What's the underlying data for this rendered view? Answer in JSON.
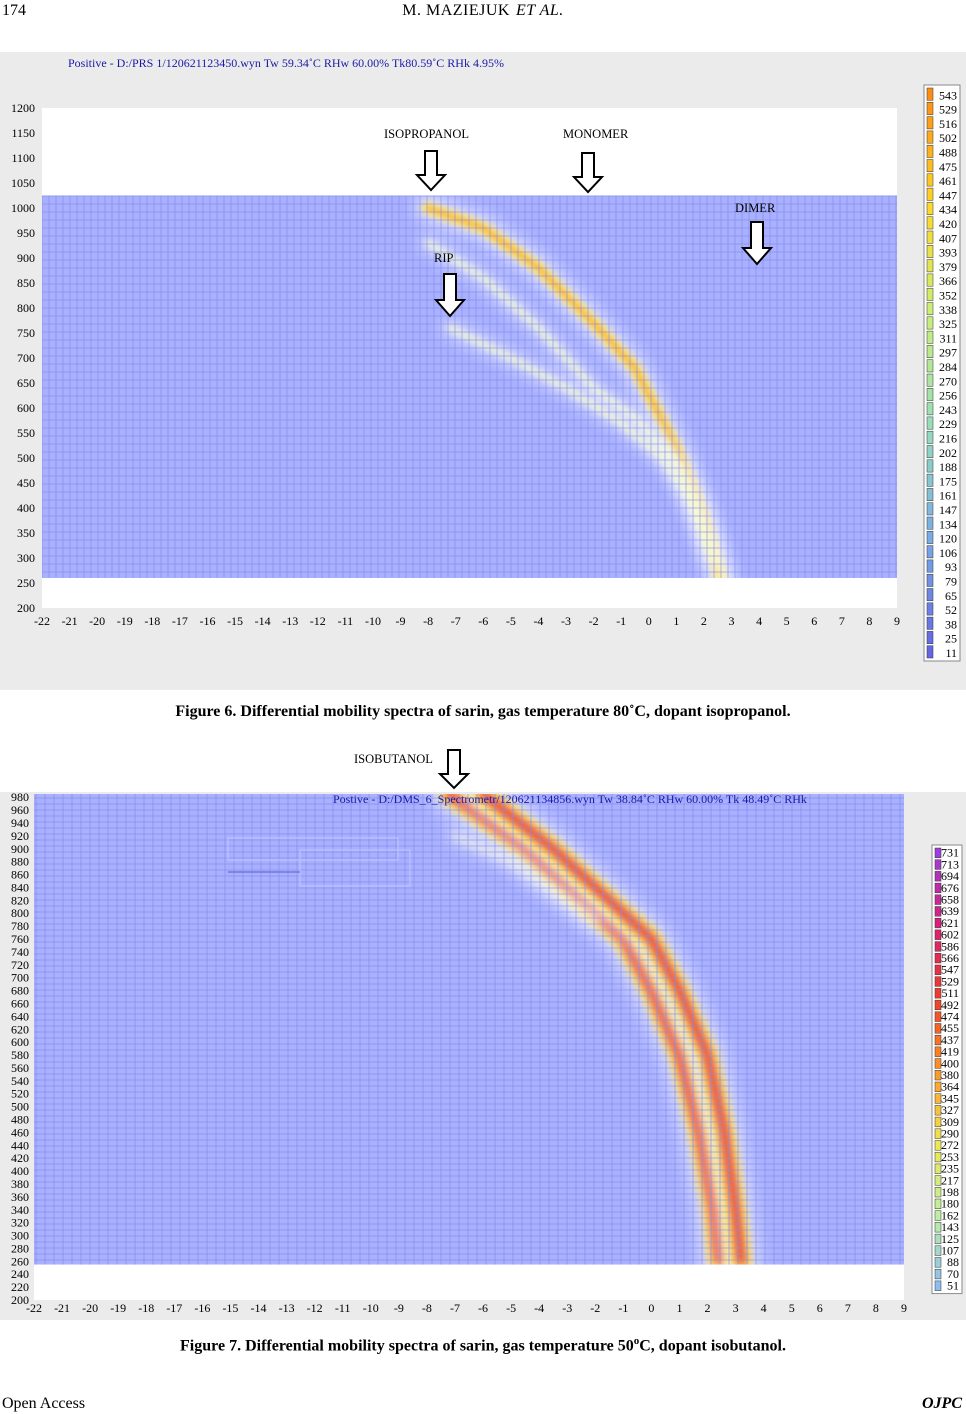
{
  "running_head": {
    "page_number": "174",
    "authors": "M. MAZIEJUK",
    "et_al": "ET AL."
  },
  "figure6": {
    "caption": "Figure 6. Differential mobility spectra of sarin, gas temperature 80˚C, dopant isopropanol.",
    "file_header": "Positive - D:/PRS 1/120621123450.wyn Tw 59.34˚C RHw 60.00% Tk80.59˚C RHk 4.95%",
    "annotations": [
      "ISOPROPANOL",
      "MONOMER",
      "RIP",
      "DIMER"
    ],
    "colors": {
      "background": "#a8b0ff",
      "grid": "#7a84e8",
      "peak": "#ffd23a",
      "panel": "#ebebeb"
    },
    "chart_data": {
      "type": "heatmap",
      "x_ticks": [
        "-22",
        "-21",
        "-20",
        "-19",
        "-18",
        "-17",
        "-16",
        "-15",
        "-14",
        "-13",
        "-12",
        "-11",
        "-10",
        "-9",
        "-8",
        "-7",
        "-6",
        "-5",
        "-4",
        "-3",
        "-2",
        "-1",
        "0",
        "1",
        "2",
        "3",
        "4",
        "5",
        "6",
        "7",
        "8",
        "9"
      ],
      "y_ticks": [
        "200",
        "250",
        "300",
        "350",
        "400",
        "450",
        "500",
        "550",
        "600",
        "650",
        "700",
        "750",
        "800",
        "850",
        "900",
        "950",
        "1000",
        "1050",
        "1100",
        "1150",
        "1200"
      ],
      "xlim": [
        -22,
        9
      ],
      "ylim": [
        200,
        1200
      ],
      "data_y_range": [
        260,
        1025
      ],
      "legend": [
        "543",
        "529",
        "516",
        "502",
        "488",
        "475",
        "461",
        "447",
        "434",
        "420",
        "407",
        "393",
        "379",
        "366",
        "352",
        "338",
        "325",
        "311",
        "297",
        "284",
        "270",
        "256",
        "243",
        "229",
        "216",
        "202",
        "188",
        "175",
        "161",
        "147",
        "134",
        "120",
        "106",
        "93",
        "79",
        "65",
        "52",
        "38",
        "25",
        "11"
      ],
      "ridges": [
        {
          "x": [
            -8,
            -6,
            -4,
            -2,
            -0.5,
            1,
            2,
            2.6
          ],
          "y": [
            1000,
            960,
            880,
            770,
            680,
            520,
            380,
            260
          ]
        },
        {
          "x": [
            -8,
            -6,
            -4,
            -2,
            -0.5,
            1.2,
            2.1,
            2.7
          ],
          "y": [
            930,
            860,
            760,
            640,
            580,
            480,
            360,
            260
          ]
        },
        {
          "x": [
            -7.2,
            -5,
            -3,
            -1,
            0.5,
            1.5,
            2.3
          ],
          "y": [
            760,
            700,
            640,
            570,
            500,
            420,
            300
          ]
        }
      ]
    }
  },
  "figure7": {
    "caption_prefix": "Figure 7. Differential mobility spectra of sarin, gas temperature 50",
    "caption_degree": "o",
    "caption_suffix": "C, dopant isobutanol.",
    "file_header": "Postive - D:/DMS_6_Spectrometr/120621134856.wyn Tw 38.84˚C RHw 60.00% Tk 48.49˚C RHk",
    "annotations": [
      "ISOBUTANOL"
    ],
    "colors": {
      "background": "#a8b0ff",
      "grid": "#7a84e8",
      "peak_core": "#e0205a",
      "peak_mid": "#ff9a2a",
      "peak_outer": "#ffe860"
    },
    "chart_data": {
      "type": "heatmap",
      "x_ticks": [
        "-22",
        "-21",
        "-20",
        "-19",
        "-18",
        "-17",
        "-16",
        "-15",
        "-14",
        "-13",
        "-12",
        "-11",
        "-10",
        "-9",
        "-8",
        "-7",
        "-6",
        "-5",
        "-4",
        "-3",
        "-2",
        "-1",
        "0",
        "1",
        "2",
        "3",
        "4",
        "5",
        "6",
        "7",
        "8",
        "9"
      ],
      "y_ticks": [
        "200",
        "220",
        "240",
        "260",
        "280",
        "300",
        "320",
        "340",
        "360",
        "380",
        "400",
        "420",
        "440",
        "460",
        "480",
        "500",
        "520",
        "540",
        "560",
        "580",
        "600",
        "620",
        "640",
        "660",
        "680",
        "700",
        "720",
        "740",
        "760",
        "780",
        "800",
        "820",
        "840",
        "860",
        "880",
        "900",
        "920",
        "940",
        "960",
        "980"
      ],
      "xlim": [
        -22,
        9
      ],
      "ylim": [
        200,
        985
      ],
      "data_y_range": [
        255,
        985
      ],
      "legend": [
        "731",
        "713",
        "694",
        "676",
        "658",
        "639",
        "621",
        "602",
        "586",
        "566",
        "547",
        "529",
        "511",
        "492",
        "474",
        "455",
        "437",
        "419",
        "400",
        "380",
        "364",
        "345",
        "327",
        "309",
        "290",
        "272",
        "253",
        "235",
        "217",
        "198",
        "180",
        "162",
        "143",
        "125",
        "107",
        "88",
        "70",
        "51"
      ],
      "ridges": [
        {
          "x": [
            -7.2,
            -4.5,
            -2.5,
            -1,
            0,
            1,
            1.7,
            2.2,
            2.4
          ],
          "y": [
            985,
            900,
            820,
            760,
            680,
            580,
            460,
            340,
            260
          ]
        },
        {
          "x": [
            -6,
            -3.5,
            -1.5,
            0,
            1,
            2,
            2.6,
            3,
            3.2
          ],
          "y": [
            985,
            900,
            820,
            760,
            680,
            580,
            460,
            340,
            260
          ]
        },
        {
          "x": [
            -7,
            -5,
            -3,
            -2
          ],
          "y": [
            920,
            880,
            820,
            790
          ]
        }
      ]
    }
  },
  "footer": {
    "access": "Open Access",
    "journal": "OJPC"
  }
}
